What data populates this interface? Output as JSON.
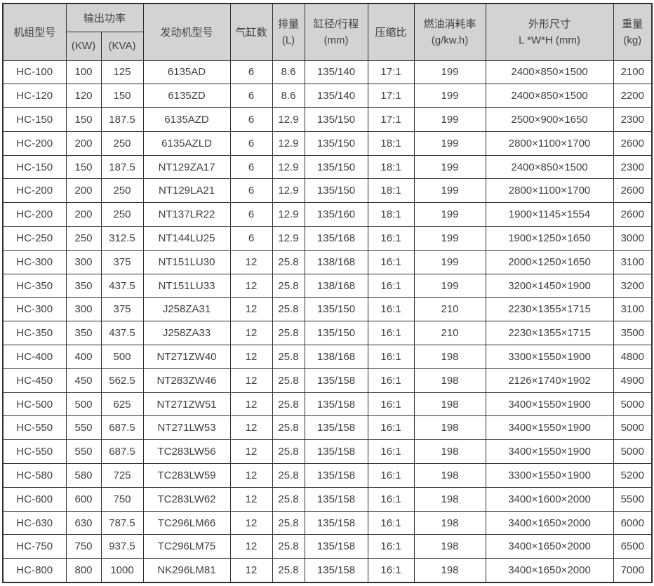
{
  "colors": {
    "header_bg": "#d3d3d3",
    "border": "#2f2f2f",
    "text": "#404040",
    "body_bg": "#ffffff"
  },
  "table": {
    "headers": {
      "unit_model": "机组型号",
      "output_power": "输出功率",
      "kw": "(KW)",
      "kva": "(KVA)",
      "engine_model": "发动机型号",
      "cylinders": "气缸数",
      "displacement_line1": "排量",
      "displacement_line2": "(L)",
      "bore_stroke_line1": "缸径/行程",
      "bore_stroke_line2": "(mm)",
      "compression_ratio": "压缩比",
      "fuel_consumption_line1": "燃油消耗率",
      "fuel_consumption_line2": "(g/kw.h)",
      "dimensions_line1": "外形尺寸",
      "dimensions_line2": "L *W*H (mm)",
      "weight_line1": "重量",
      "weight_line2": "(kg)"
    },
    "rows": [
      [
        "HC-100",
        "100",
        "125",
        "6135AD",
        "6",
        "8.6",
        "135/140",
        "17:1",
        "199",
        "2400×850×1500",
        "2100"
      ],
      [
        "HC-120",
        "120",
        "150",
        "6135ZD",
        "6",
        "8.6",
        "135/140",
        "17:1",
        "199",
        "2400×850×1500",
        "2200"
      ],
      [
        "HC-150",
        "150",
        "187.5",
        "6135AZD",
        "6",
        "12.9",
        "135/150",
        "17:1",
        "199",
        "2500×900×1650",
        "2300"
      ],
      [
        "HC-200",
        "200",
        "250",
        "6135AZLD",
        "6",
        "12.9",
        "135/150",
        "18:1",
        "199",
        "2800×1100×1700",
        "2600"
      ],
      [
        "HC-150",
        "150",
        "187.5",
        "NT129ZA17",
        "6",
        "12.9",
        "135/150",
        "18:1",
        "199",
        "2400×850×1500",
        "2300"
      ],
      [
        "HC-200",
        "200",
        "250",
        "NT129LA21",
        "6",
        "12.9",
        "135/150",
        "18:1",
        "199",
        "2800×1100×1700",
        "2600"
      ],
      [
        "HC-200",
        "200",
        "250",
        "NT137LR22",
        "6",
        "12.9",
        "135/160",
        "18:1",
        "199",
        "1900×1145×1554",
        "2600"
      ],
      [
        "HC-250",
        "250",
        "312.5",
        "NT144LU25",
        "6",
        "12.9",
        "135/168",
        "16:1",
        "199",
        "1900×1250×1650",
        "3000"
      ],
      [
        "HC-300",
        "300",
        "375",
        "NT151LU30",
        "12",
        "25.8",
        "138/168",
        "16:1",
        "199",
        "2000×1250×1650",
        "3100"
      ],
      [
        "HC-350",
        "350",
        "437.5",
        "NT151LU33",
        "12",
        "25.8",
        "138/168",
        "16:1",
        "199",
        "3200×1450×1900",
        "3200"
      ],
      [
        "HC-300",
        "300",
        "375",
        "J258ZA31",
        "12",
        "25.8",
        "135/150",
        "16:1",
        "210",
        "2230×1355×1715",
        "3100"
      ],
      [
        "HC-350",
        "350",
        "437.5",
        "J258ZA33",
        "12",
        "25.8",
        "135/150",
        "16:1",
        "210",
        "2230×1355×1715",
        "3500"
      ],
      [
        "HC-400",
        "400",
        "500",
        "NT271ZW40",
        "12",
        "25.8",
        "138/168",
        "16:1",
        "198",
        "3300×1550×1900",
        "4800"
      ],
      [
        "HC-450",
        "450",
        "562.5",
        "NT283ZW46",
        "12",
        "25.8",
        "135/158",
        "16:1",
        "198",
        "2126×1740×1902",
        "4900"
      ],
      [
        "HC-500",
        "500",
        "625",
        "NT271ZW51",
        "12",
        "25.8",
        "135/158",
        "16:1",
        "198",
        "3400×1550×1900",
        "5000"
      ],
      [
        "HC-550",
        "550",
        "687.5",
        "NT271LW53",
        "12",
        "25.8",
        "135/158",
        "16:1",
        "198",
        "3400×1550×1900",
        "5000"
      ],
      [
        "HC-550",
        "550",
        "687.5",
        "TC283LW56",
        "12",
        "25.8",
        "135/158",
        "16:1",
        "198",
        "3400×1550×1900",
        "5000"
      ],
      [
        "HC-580",
        "580",
        "725",
        "TC283LW59",
        "12",
        "25.8",
        "135/158",
        "16:1",
        "198",
        "3300×1550×1900",
        "5200"
      ],
      [
        "HC-600",
        "600",
        "750",
        "TC283LW62",
        "12",
        "25.8",
        "135/158",
        "16:1",
        "198",
        "3400×1600×2000",
        "5500"
      ],
      [
        "HC-630",
        "630",
        "787.5",
        "TC296LM66",
        "12",
        "25.8",
        "135/158",
        "16:1",
        "198",
        "3400×1650×2000",
        "6000"
      ],
      [
        "HC-750",
        "750",
        "937.5",
        "TC296LM75",
        "12",
        "25.8",
        "135/158",
        "16:1",
        "198",
        "3400×1650×2000",
        "6500"
      ],
      [
        "HC-800",
        "800",
        "1000",
        "NK296LM81",
        "12",
        "25.8",
        "135/158",
        "16:1",
        "198",
        "3400×1650×2000",
        "7000"
      ]
    ]
  }
}
